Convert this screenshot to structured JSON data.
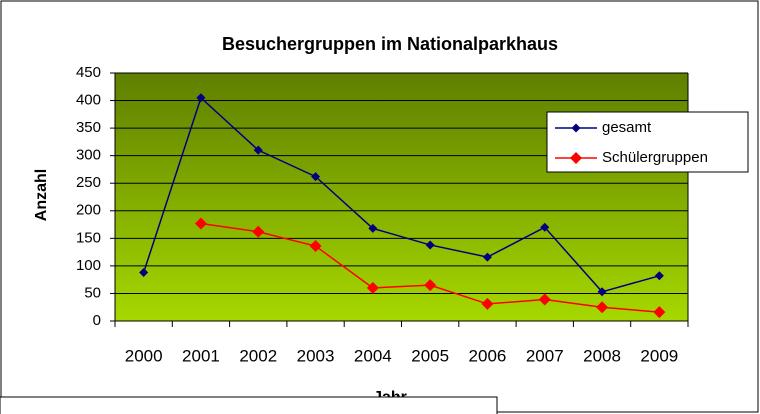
{
  "chart_data": {
    "type": "line",
    "title": "Besuchergruppen im Nationalparkhaus",
    "x_label": "Jahr",
    "y_label": "Anzahl",
    "categories": [
      "2000",
      "2001",
      "2002",
      "2003",
      "2004",
      "2005",
      "2006",
      "2007",
      "2008",
      "2009"
    ],
    "series": [
      {
        "name": "gesamt",
        "color": "#000080",
        "values": [
          88,
          405,
          310,
          262,
          168,
          138,
          116,
          170,
          53,
          82
        ]
      },
      {
        "name": "Schülergruppen",
        "color": "#ff0000",
        "values": [
          null,
          177,
          162,
          136,
          60,
          65,
          31,
          39,
          25,
          16
        ]
      }
    ],
    "ylim": [
      0,
      450
    ],
    "yticks": [
      0,
      50,
      100,
      150,
      200,
      250,
      300,
      350,
      400,
      450
    ],
    "grid": true,
    "legend": "right"
  }
}
